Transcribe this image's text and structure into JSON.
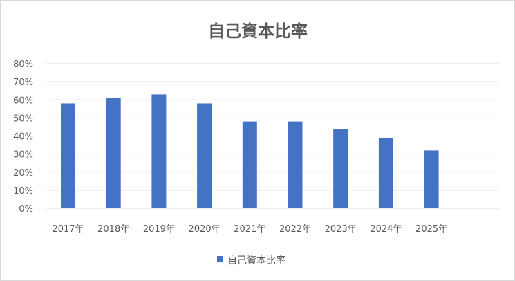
{
  "chart_data": {
    "type": "bar",
    "title": "自己資本比率",
    "categories": [
      "2017年",
      "2018年",
      "2019年",
      "2020年",
      "2021年",
      "2022年",
      "2023年",
      "2024年",
      "2025年"
    ],
    "series": [
      {
        "name": "自己資本比率",
        "values": [
          58,
          61,
          63,
          58,
          48,
          48,
          44,
          39,
          32
        ],
        "color": "#4472C4"
      }
    ],
    "y_ticks": [
      "0%",
      "10%",
      "20%",
      "30%",
      "40%",
      "50%",
      "60%",
      "70%",
      "80%"
    ],
    "ylim": [
      0,
      80
    ],
    "grid": true,
    "legend_position": "bottom"
  }
}
